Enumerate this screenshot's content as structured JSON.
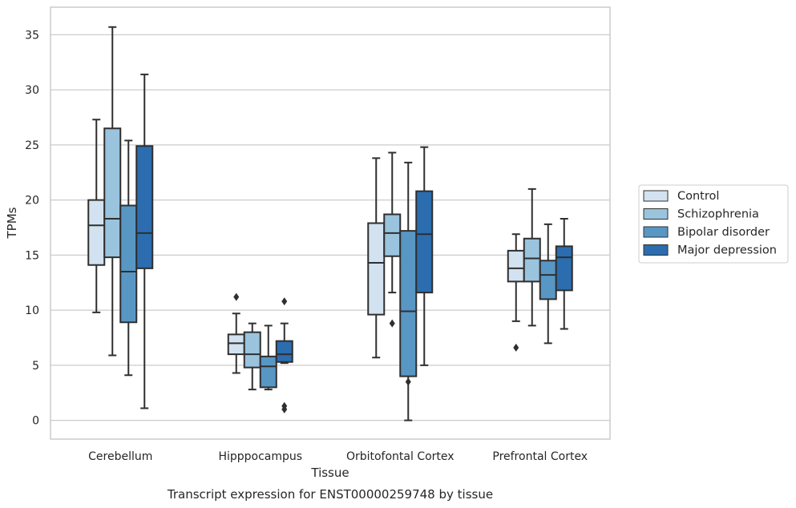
{
  "chart_data": {
    "type": "box",
    "categories": [
      "Cerebellum",
      "Hipppocampus",
      "Orbitofontal Cortex",
      "Prefrontal Cortex"
    ],
    "xlabel": "Tissue",
    "ylabel": "TPMs",
    "caption": "Transcript expression for ENST00000259748 by tissue",
    "ylim": [
      -1.7,
      37.5
    ],
    "yticks": [
      0,
      5,
      10,
      15,
      20,
      25,
      30,
      35
    ],
    "grid": true,
    "legend_position": "right",
    "series": [
      {
        "name": "Control",
        "color": "#d2e2f0",
        "boxes": [
          {
            "whislo": 9.8,
            "q1": 14.1,
            "med": 17.7,
            "q3": 20.0,
            "whishi": 27.3,
            "fliers": []
          },
          {
            "whislo": 4.3,
            "q1": 6.0,
            "med": 7.0,
            "q3": 7.8,
            "whishi": 9.7,
            "fliers": [
              11.2
            ]
          },
          {
            "whislo": 5.7,
            "q1": 9.6,
            "med": 14.3,
            "q3": 17.9,
            "whishi": 23.8,
            "fliers": []
          },
          {
            "whislo": 9.0,
            "q1": 12.6,
            "med": 13.8,
            "q3": 15.4,
            "whishi": 16.9,
            "fliers": [
              6.6
            ]
          }
        ]
      },
      {
        "name": "Schizophrenia",
        "color": "#9ac3dd",
        "boxes": [
          {
            "whislo": 5.9,
            "q1": 14.8,
            "med": 18.3,
            "q3": 26.5,
            "whishi": 35.7,
            "fliers": []
          },
          {
            "whislo": 2.8,
            "q1": 4.8,
            "med": 6.0,
            "q3": 8.0,
            "whishi": 8.8,
            "fliers": []
          },
          {
            "whislo": 11.6,
            "q1": 14.9,
            "med": 17.0,
            "q3": 18.7,
            "whishi": 24.3,
            "fliers": [
              8.8
            ]
          },
          {
            "whislo": 8.6,
            "q1": 12.6,
            "med": 14.7,
            "q3": 16.5,
            "whishi": 21.0,
            "fliers": []
          }
        ]
      },
      {
        "name": "Bipolar disorder",
        "color": "#5897c4",
        "boxes": [
          {
            "whislo": 4.1,
            "q1": 8.9,
            "med": 13.5,
            "q3": 19.5,
            "whishi": 25.4,
            "fliers": []
          },
          {
            "whislo": 2.8,
            "q1": 3.0,
            "med": 4.9,
            "q3": 5.8,
            "whishi": 8.6,
            "fliers": []
          },
          {
            "whislo": 0.0,
            "q1": 4.0,
            "med": 9.9,
            "q3": 17.2,
            "whishi": 23.4,
            "fliers": [
              3.5
            ]
          },
          {
            "whislo": 7.0,
            "q1": 11.0,
            "med": 13.2,
            "q3": 14.5,
            "whishi": 17.8,
            "fliers": []
          }
        ]
      },
      {
        "name": "Major depression",
        "color": "#2b6daf",
        "boxes": [
          {
            "whislo": 1.1,
            "q1": 13.8,
            "med": 17.0,
            "q3": 24.9,
            "whishi": 31.4,
            "fliers": []
          },
          {
            "whislo": 5.2,
            "q1": 5.3,
            "med": 6.0,
            "q3": 7.2,
            "whishi": 8.8,
            "fliers": [
              10.8,
              1.3,
              1.0
            ]
          },
          {
            "whislo": 5.0,
            "q1": 11.6,
            "med": 16.9,
            "q3": 20.8,
            "whishi": 24.8,
            "fliers": []
          },
          {
            "whislo": 8.3,
            "q1": 11.8,
            "med": 14.8,
            "q3": 15.8,
            "whishi": 18.3,
            "fliers": []
          }
        ]
      }
    ]
  }
}
